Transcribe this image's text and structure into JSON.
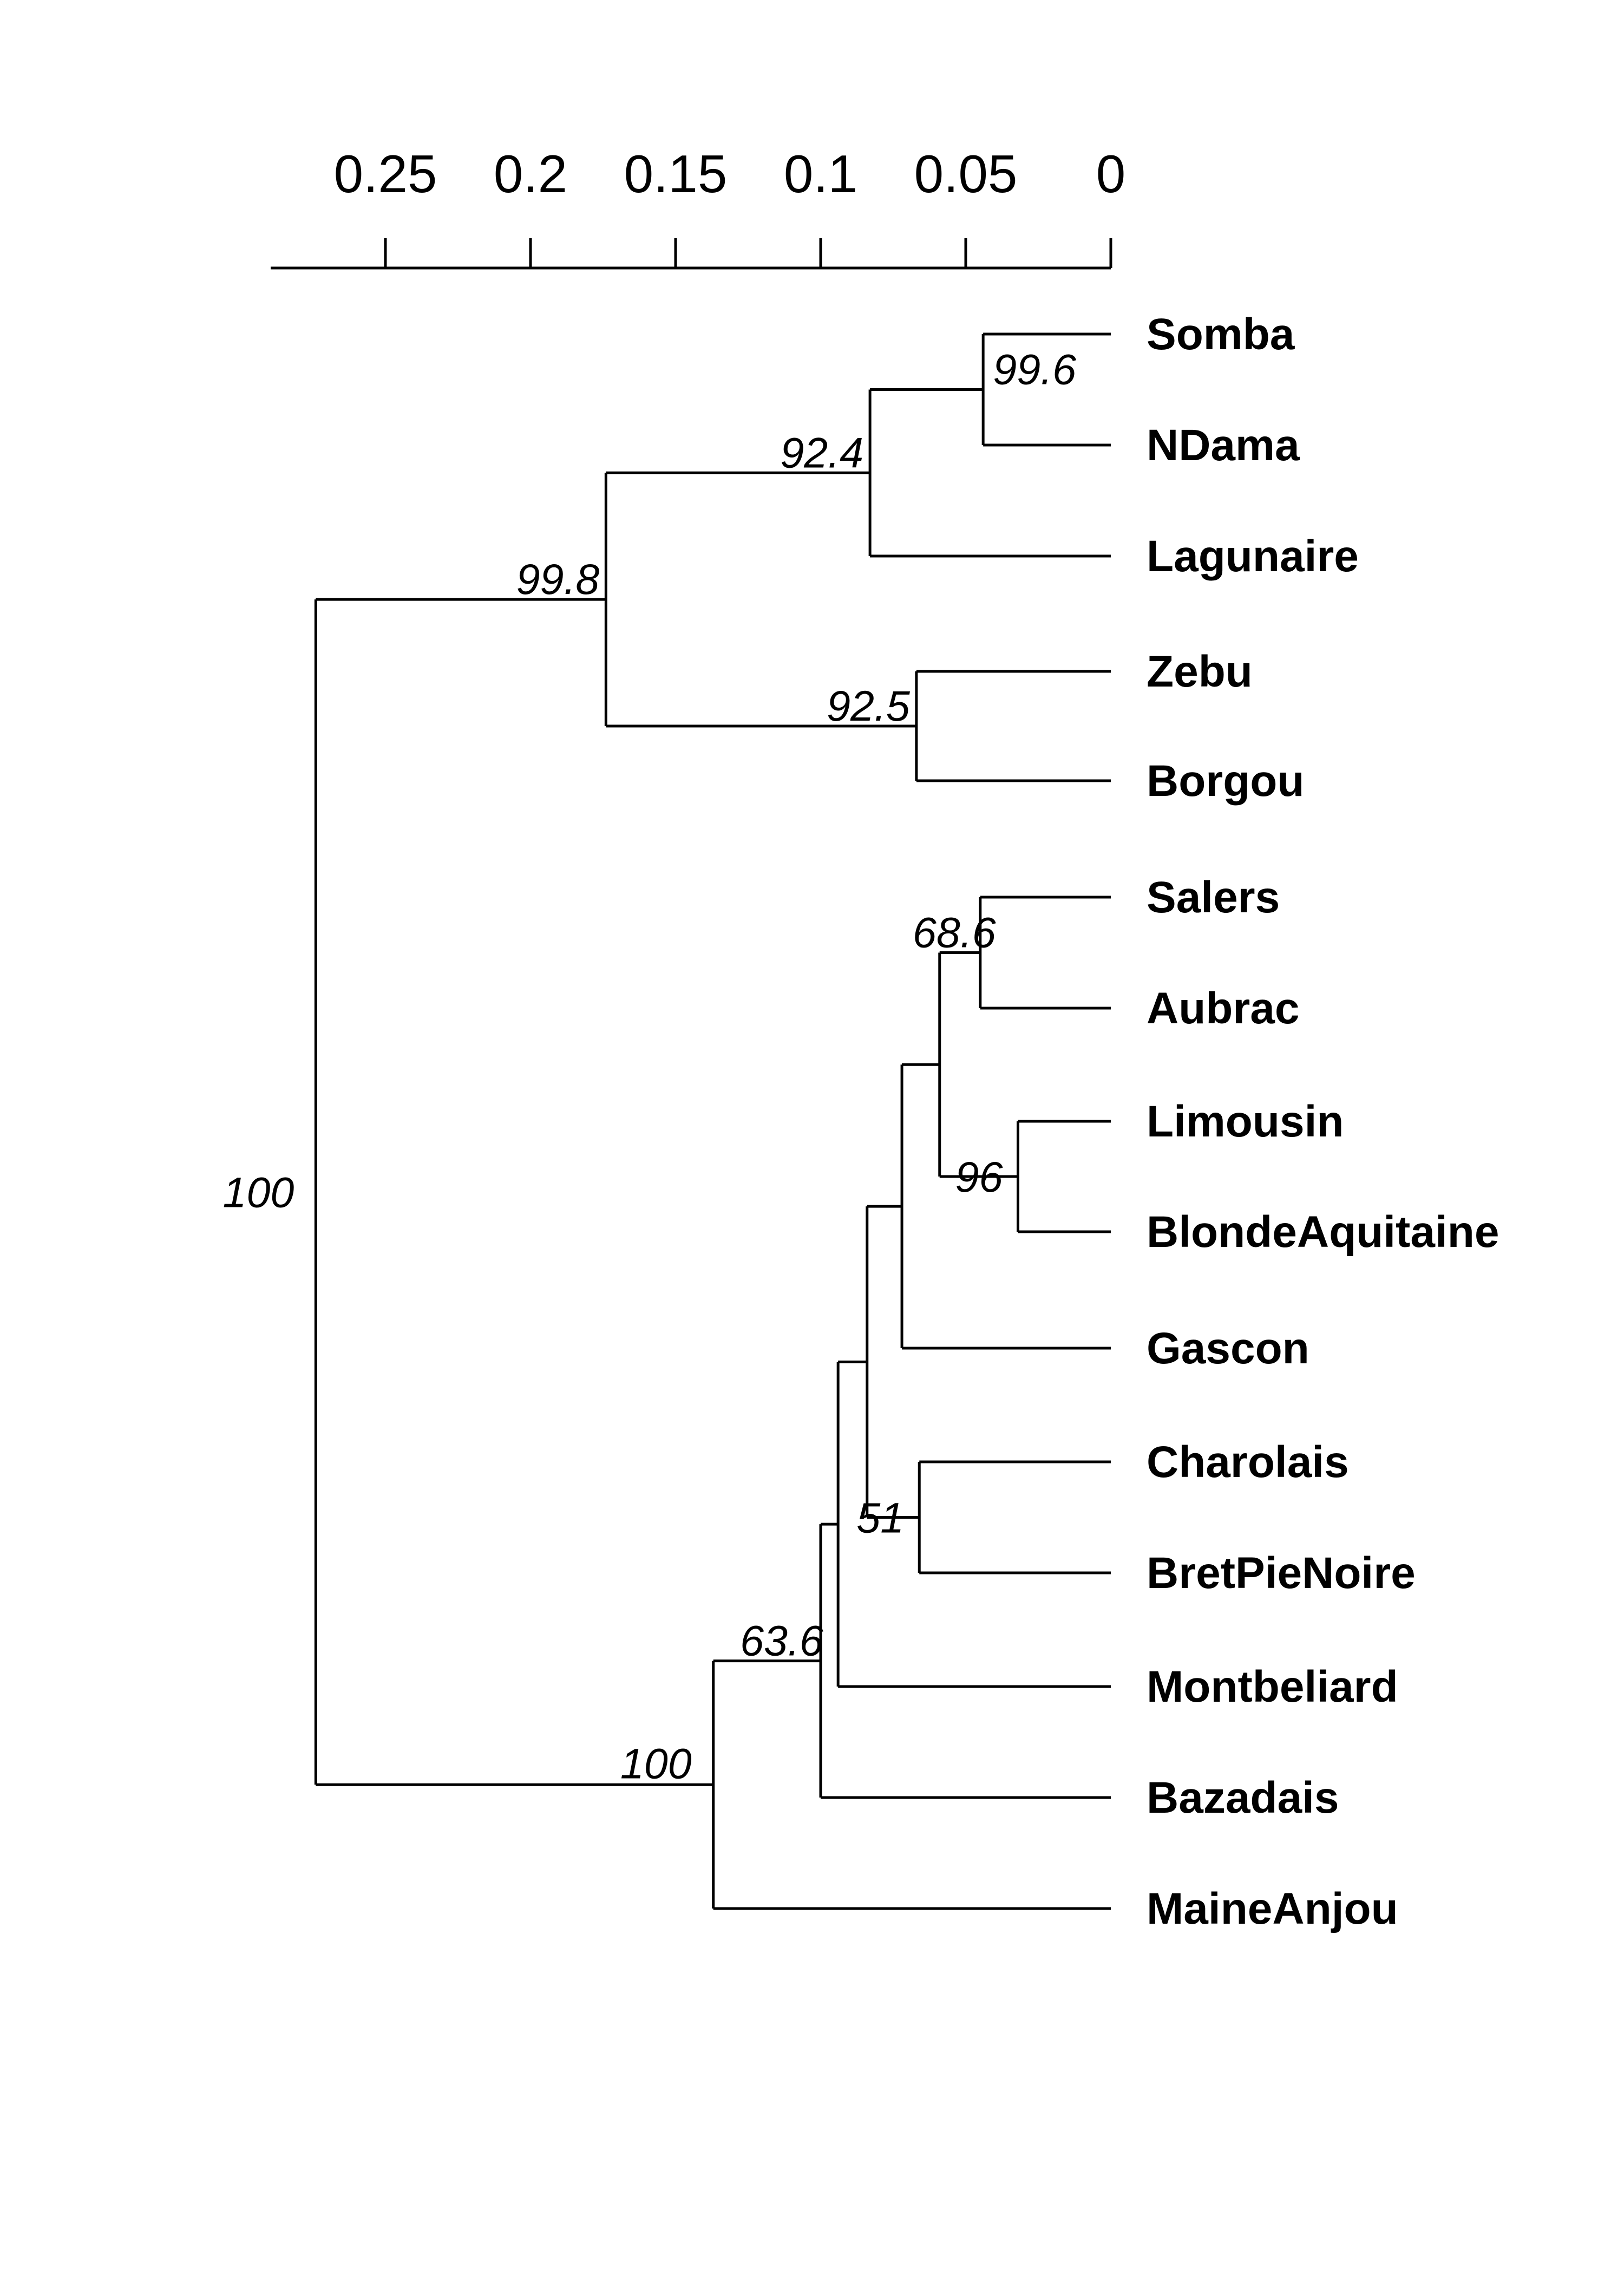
{
  "scale_axis": {
    "ticks": [
      {
        "value": 0.25,
        "label": "0.25"
      },
      {
        "value": 0.2,
        "label": "0.2"
      },
      {
        "value": 0.15,
        "label": "0.15"
      },
      {
        "value": 0.1,
        "label": "0.1"
      },
      {
        "value": 0.05,
        "label": "0.05"
      },
      {
        "value": 0,
        "label": "0"
      }
    ],
    "range": [
      0.29,
      0
    ]
  },
  "tree": {
    "leaves": [
      {
        "id": "somba",
        "label": "Somba"
      },
      {
        "id": "ndama",
        "label": "NDama"
      },
      {
        "id": "lagunaire",
        "label": "Lagunaire"
      },
      {
        "id": "zebu",
        "label": "Zebu"
      },
      {
        "id": "borgou",
        "label": "Borgou"
      },
      {
        "id": "salers",
        "label": "Salers"
      },
      {
        "id": "aubrac",
        "label": "Aubrac"
      },
      {
        "id": "limousin",
        "label": "Limousin"
      },
      {
        "id": "blondeaquitaine",
        "label": "BlondeAquitaine"
      },
      {
        "id": "gascon",
        "label": "Gascon"
      },
      {
        "id": "charolais",
        "label": "Charolais"
      },
      {
        "id": "bretpienoire",
        "label": "BretPieNoire"
      },
      {
        "id": "montbeliard",
        "label": "Montbeliard"
      },
      {
        "id": "bazadais",
        "label": "Bazadais"
      },
      {
        "id": "maineanjou",
        "label": "MaineAnjou"
      }
    ],
    "nodes": [
      {
        "id": "n_somba_ndama",
        "height": 0.044,
        "children": [
          "somba",
          "ndama"
        ],
        "support": "99.6"
      },
      {
        "id": "n_african_taurine",
        "height": 0.083,
        "children": [
          "n_somba_ndama",
          "lagunaire"
        ],
        "support": "92.4"
      },
      {
        "id": "n_zebu_borgou",
        "height": 0.067,
        "children": [
          "zebu",
          "borgou"
        ],
        "support": "92.5"
      },
      {
        "id": "n_african",
        "height": 0.174,
        "children": [
          "n_african_taurine",
          "n_zebu_borgou"
        ],
        "support": "99.8"
      },
      {
        "id": "n_salers_aubrac",
        "height": 0.045,
        "children": [
          "salers",
          "aubrac"
        ],
        "support": "68.6"
      },
      {
        "id": "n_limousin_blonde",
        "height": 0.032,
        "children": [
          "limousin",
          "blondeaquitaine"
        ],
        "support": "96"
      },
      {
        "id": "n_southwest",
        "height": 0.059,
        "children": [
          "n_salers_aubrac",
          "n_limousin_blonde"
        ],
        "support": ""
      },
      {
        "id": "n_with_gascon",
        "height": 0.072,
        "children": [
          "n_southwest",
          "gascon"
        ],
        "support": ""
      },
      {
        "id": "n_charolais_bret",
        "height": 0.066,
        "children": [
          "charolais",
          "bretpienoire"
        ],
        "support": "51"
      },
      {
        "id": "n_with_charolais",
        "height": 0.084,
        "children": [
          "n_with_gascon",
          "n_charolais_bret"
        ],
        "support": ""
      },
      {
        "id": "n_with_montbeliard",
        "height": 0.094,
        "children": [
          "n_with_charolais",
          "montbeliard"
        ],
        "support": ""
      },
      {
        "id": "n_with_bazadais",
        "height": 0.1,
        "children": [
          "n_with_montbeliard",
          "bazadais"
        ],
        "support": "63.6"
      },
      {
        "id": "n_european",
        "height": 0.137,
        "children": [
          "n_with_bazadais",
          "maineanjou"
        ],
        "support": "100"
      },
      {
        "id": "n_root",
        "height": 0.274,
        "children": [
          "n_african",
          "n_european"
        ],
        "support": "100"
      }
    ]
  }
}
